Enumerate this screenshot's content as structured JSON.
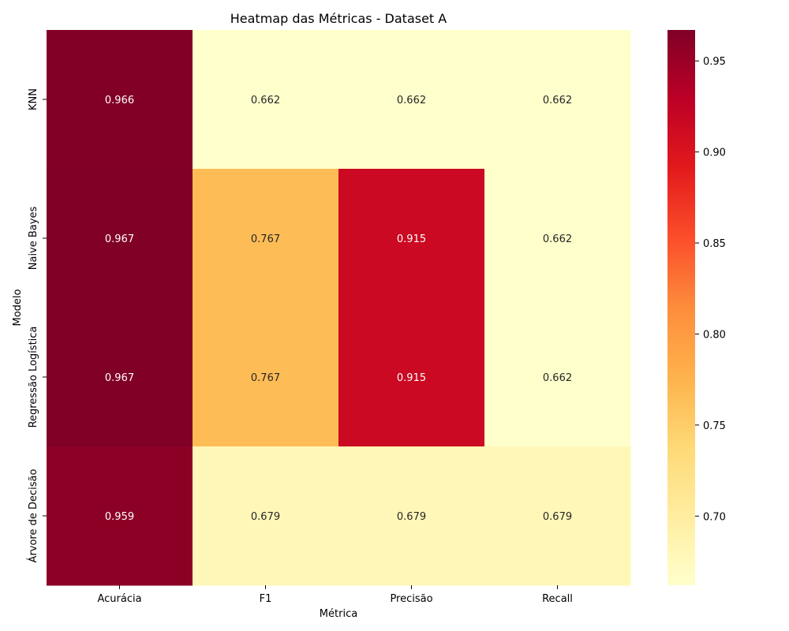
{
  "chart_data": {
    "type": "heatmap",
    "title": "Heatmap das Métricas - Dataset A",
    "xlabel": "Métrica",
    "ylabel": "Modelo",
    "x_categories": [
      "Acurácia",
      "F1",
      "Precisão",
      "Recall"
    ],
    "y_categories": [
      "KNN",
      "Naive Bayes",
      "Regressão Logística",
      "Árvore de Decisão"
    ],
    "values": [
      [
        0.966,
        0.662,
        0.662,
        0.662
      ],
      [
        0.967,
        0.767,
        0.915,
        0.662
      ],
      [
        0.967,
        0.767,
        0.915,
        0.662
      ],
      [
        0.959,
        0.679,
        0.679,
        0.679
      ]
    ],
    "colormap": "YlOrRd",
    "colorbar": {
      "min": 0.662,
      "max": 0.967,
      "ticks": [
        "0.70",
        "0.75",
        "0.80",
        "0.85",
        "0.90",
        "0.95"
      ]
    },
    "annotations": true,
    "grid": false
  }
}
